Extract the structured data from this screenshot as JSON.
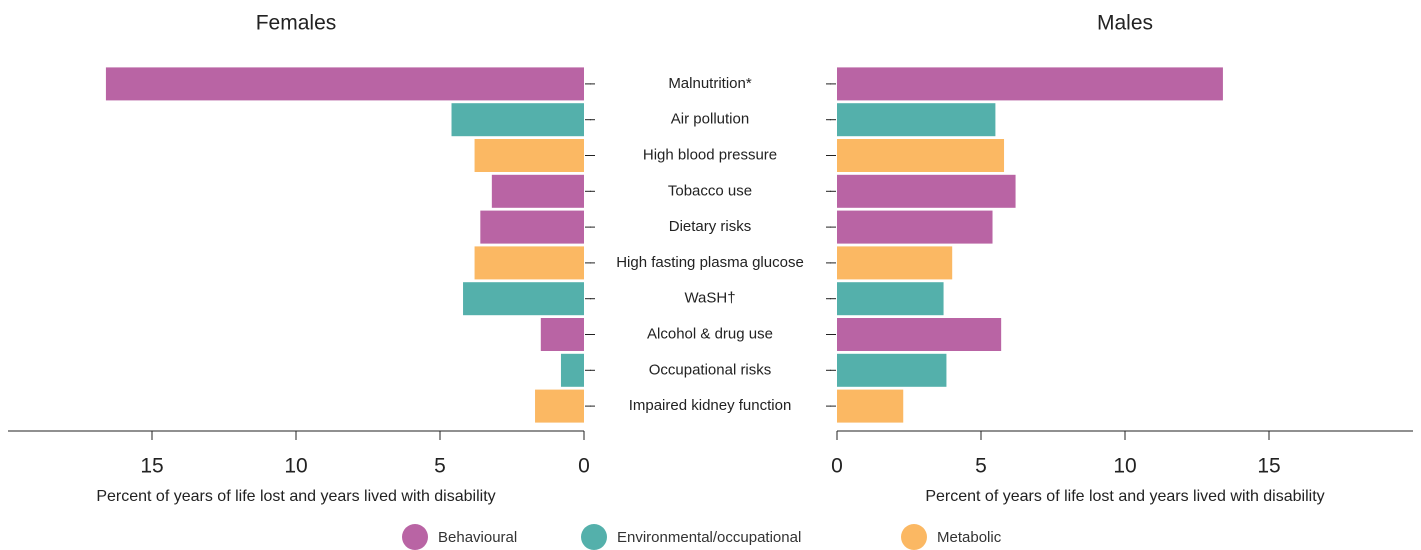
{
  "chart_data": {
    "type": "bar",
    "categories": [
      "Malnutrition*",
      "Air pollution",
      "High blood pressure",
      "Tobacco use",
      "Dietary risks",
      "High fasting plasma glucose",
      "WaSH†",
      "Alcohol & drug use",
      "Occupational risks",
      "Impaired kidney function"
    ],
    "colors": [
      "#b964a4",
      "#54b0ab",
      "#fbb863",
      "#b964a4",
      "#b964a4",
      "#fbb863",
      "#54b0ab",
      "#b964a4",
      "#54b0ab",
      "#fbb863"
    ],
    "legend": [
      {
        "name": "Behavioural",
        "color": "#b964a4"
      },
      {
        "name": "Environmental/occupational",
        "color": "#54b0ab"
      },
      {
        "name": "Metabolic",
        "color": "#fbb863"
      }
    ],
    "panels": [
      {
        "title": "Females",
        "values": [
          16.6,
          4.6,
          3.8,
          3.2,
          3.6,
          3.8,
          4.2,
          1.5,
          0.8,
          1.7
        ],
        "xlim": [
          0,
          20
        ],
        "xticks": [
          15,
          10,
          5,
          0
        ],
        "reversed": true,
        "xlabel": "Percent of years of life lost and years lived with disability"
      },
      {
        "title": "Males",
        "values": [
          13.4,
          5.5,
          5.8,
          6.2,
          5.4,
          4.0,
          3.7,
          5.7,
          3.8,
          2.3
        ],
        "xlim": [
          0,
          20
        ],
        "xticks": [
          0,
          5,
          10,
          15
        ],
        "reversed": false,
        "xlabel": "Percent of years of life lost and years lived with disability"
      }
    ]
  }
}
